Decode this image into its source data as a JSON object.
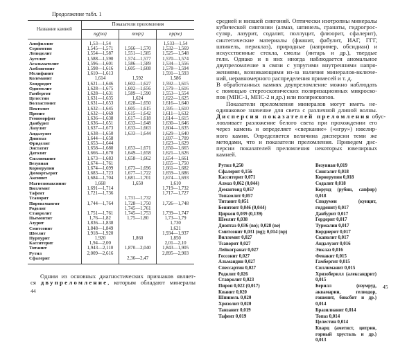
{
  "left_page": {
    "table_caption": "Продолжение табл. 1",
    "table": {
      "name_header": "Название камней",
      "group_header": "Показатели преломления",
      "columns": [
        "ng(no)",
        "nm(n)",
        "np(ne)"
      ],
      "rows": [
        [
          "Апофиллит",
          "1,53—1,54",
          "",
          "1,533—1,54"
        ],
        [
          "Серпентин",
          "1,545—1,571",
          "1,566—1,570",
          "1,532—1,569"
        ],
        [
          "Лепидолит",
          "1,554—1,587",
          "1,551—1,585",
          "1,525—1,548"
        ],
        [
          "Аугелит",
          "1,588—1,590",
          "1,574—1,577",
          "1,570—1,574"
        ],
        [
          "Агальматолит",
          "1,596—1,601",
          "1,586—1,589",
          "1,534—1,556"
        ],
        [
          "Амблигонит",
          "1,598—1,616",
          "1,605—1,608",
          "1,578—1,594"
        ],
        [
          "Мелифанит",
          "1,610—1,613",
          "",
          "1,591—1,593"
        ],
        [
          "Колеманит",
          "1,614",
          "1,592",
          "1,586"
        ],
        [
          "Хондродит",
          "1,621—1,646",
          "1,602—1,627",
          "1,592—1,615"
        ],
        [
          "Одонтолит",
          "1,628—1,675",
          "1,602—1,656",
          "1,579—1,616"
        ],
        [
          "Гамбергит",
          "1,628—1,631",
          "1,589—1,590",
          "1,553—1,554"
        ],
        [
          "Целестин",
          "1,631—1,635",
          "1,624",
          "1,622—1,625"
        ],
        [
          "Волластонит",
          "1,631—1,653",
          "1,628—1,650",
          "1,616—1,640"
        ],
        [
          "Пектолит",
          "1,632—1,645",
          "1,605—1,615",
          "1,595—1,610"
        ],
        [
          "Пренит",
          "1,632—1,669",
          "1,615—1,642",
          "1,611—1,632"
        ],
        [
          "Гемиморфит",
          "1,636—1,638",
          "1,617—1,618",
          "1,614—1,615"
        ],
        [
          "Данбурит",
          "1,636—1,651",
          "1,633—1,648",
          "1,630—1,646"
        ],
        [
          "Лазулит",
          "1,637—1,673",
          "1,633—1,663",
          "1,604—1,635"
        ],
        [
          "Андалузит",
          "1,638—1,650",
          "1,633—1,644",
          "1,629—1,640"
        ],
        [
          "Диоптаз",
          "1,644—1,658",
          "",
          "1,697—1,709"
        ],
        [
          "Фриделит",
          "1,653—1,644",
          "",
          "1,623—1,629"
        ],
        [
          "Энстатит",
          "1,658—1,680",
          "1,653—1,671",
          "1,650—1,665"
        ],
        [
          "Датолит",
          "1,666—1,670",
          "1,649—1,658",
          "1,621—1,626"
        ],
        [
          "Силлиманит",
          "1,673—1,683",
          "1,658—1,662",
          "1,654—1,661"
        ],
        [
          "Везувиан",
          "1,674—1,761",
          "",
          "1,655—1,750"
        ],
        [
          "Корнерупин",
          "1,674—1,699",
          "1,673—1,696",
          "1,661—1,682"
        ],
        [
          "Дюмортьерит",
          "1,683—1,723",
          "1,677—1,722",
          "1,659—1,686"
        ],
        [
          "Аксинит",
          "1,684—1,704",
          "1,681—1,701",
          "1,674—1,693"
        ],
        [
          "Магнезиоаксинит",
          "1,668",
          "1,650",
          "1,610"
        ],
        [
          "Виллемит",
          "1,691—1,714",
          "",
          "1,719—1,732"
        ],
        [
          "Тафеит",
          "1,721—1,736",
          "",
          "1,717—1,727"
        ],
        [
          "Тсаворит",
          "",
          "1,731—1,732",
          ""
        ],
        [
          "Пироксмангит",
          "1,744—1,764",
          "1,728—1,750",
          "1,726—1,748"
        ],
        [
          "Родолит",
          "",
          "1,745—1,761",
          ""
        ],
        [
          "Ставролит",
          "1,751—1,761",
          "1,745—1,753",
          "1,739—1,747"
        ],
        [
          "Пьемонтит",
          "1,76—1,82",
          "1,75—1,80",
          "1,73—1,79"
        ],
        [
          "Азурит",
          "1,836—1,838",
          "",
          "1,730"
        ],
        [
          "Смитсонит",
          "1,848—1,849",
          "",
          "1,621"
        ],
        [
          "Шеелит",
          "1,918—1,920",
          "",
          "1,934—1,937"
        ],
        [
          "Пурпурит",
          "1,920",
          "1,860",
          "1,850"
        ],
        [
          "Касситерит",
          "1,94—2,00",
          "",
          "2,01—2,10"
        ],
        [
          "Титанит",
          "1,943—2,110",
          "1,870—2,040",
          "1,843—1,905"
        ],
        [
          "Рутил",
          "2,009—2,616",
          "",
          "2,895—2,903"
        ],
        [
          "Сфалерит",
          "",
          "2,36—2,47",
          ""
        ]
      ]
    },
    "paragraph": [
      [
        {
          "t": "Одним из основных диагностических признаков являет-"
        }
      ],
      [
        {
          "t": "ся "
        },
        {
          "t": "двупреломление",
          "sp": true
        },
        {
          "t": ", которым обладают минералы"
        }
      ]
    ],
    "page_number": "44"
  },
  "right_page": {
    "paragraph": [
      [
        {
          "t": "средней и низшей сингоний. Оптически изотропны минералы"
        }
      ],
      [
        {
          "t": "кубической сингонии (алмаз, шпинель, гранаты, гидрогрос-"
        }
      ],
      [
        {
          "t": "суляр, лазурит, содалит, поллуцит, флюорит, сфалерит),"
        }
      ],
      [
        {
          "t": "синтетические материалы (фианит, фабулит, ИАГ, ГГГ,"
        }
      ],
      [
        {
          "t": "шпинель, периклаз), природные (например, обсидиан) и"
        }
      ],
      [
        {
          "t": "искусственные стекла, смолы (янтарь и др.), твердые"
        }
      ],
      [
        {
          "t": "гели. Однако и в них иногда наблюдается аномальное"
        }
      ],
      [
        {
          "t": "двупреломление в связи с упругими внутренними напря-"
        }
      ],
      [
        {
          "t": "жениями, возникающими из-за наличия минералов-включе-"
        }
      ],
      [
        {
          "t": "ний, неравномерного распределения примесей и т. д."
        }
      ],
      [
        {
          "t": "В обработанных камнях двупреломление можно наблюдать"
        }
      ],
      [
        {
          "t": "с помощью стереоскопических поляризационных микроско-"
        }
      ],
      [
        {
          "t": "пов (МПС-1, МПС-2 и др.) или полярископов."
        }
      ],
      [
        {
          "t": "Показатели преломления минералов могут иметь не-"
        }
      ],
      [
        {
          "t": "одинаковое значение для света с различной длиной волны."
        }
      ],
      [
        {
          "t": "Дисперсия показателей преломления",
          "sp": true
        },
        {
          "t": " обус-"
        }
      ],
      [
        {
          "t": "ловливает разложение белого света при прохождении его"
        }
      ],
      [
        {
          "t": "через камень и определяет «сверкание» («игру») ювелир-"
        }
      ],
      [
        {
          "t": "ного камня. Определяется величина дисперсии теми же"
        }
      ],
      [
        {
          "t": "методами, что и показатели преломления. Приведем дис-"
        }
      ],
      [
        {
          "t": "персии показателей преломления некоторых ювелирных"
        }
      ],
      [
        {
          "t": "камней."
        }
      ]
    ],
    "dispersion_list_left": [
      "Рутил 0,250",
      "Сфалерит 0,156",
      "Касситерит 0,071",
      "Алмаз 0,062 (0,044)",
      "Демантоид 0,057",
      "Топазолит 0,057",
      "Титанит 0,051",
      "Бенитоит 0,046 (0,044)",
      "Циркон 0,039 (0,139)",
      "Шеелит 0,038",
      "Диоптаз 0,036 (no); 0,028 (ne)",
      "Смитсонит 0,031 (ng); 0,014 (np)",
      "Виллемит 0,027",
      "Тсаворит 0,027",
      "Лейкогранат 0,027",
      "Гессонит 0,027",
      "Альмандин 0,027",
      "Спессартин 0,027",
      "Родолит 0,026",
      "Ставролит 0,023",
      "Пироп 0,022 (0,017)",
      "Кианит 0,020",
      "Шпинель 0,020",
      "Хризолит 0,020",
      "Танзанит 0,019",
      "Тафеит 0,019"
    ],
    "dispersion_list_right": [
      "Везувиан 0,019",
      "Сингалит 0,018",
      "Корнерупин 0,018",
      "Содалит 0,018",
      "Корунд (рубин, сапфир) 0,018",
      "Сподумен (кунцит, гидденит) 0,017",
      "Данбурит 0,017",
      "Гердерит 0,017",
      "Турмалин 0,017",
      "Кордиерит 0,017",
      "Скаполит 0,017",
      "Андалузит 0,016",
      "Эвклаз 0,016",
      "Фенакит 0,015",
      "Гамбергит 0,015",
      "Силлиманит 0,015",
      "Хризоберилл (александрит) 0,015",
      "Берилл (изумруд, аквамарин, гелиодор, гошенит, биксбит и др.) 0,014",
      "Бразилианит 0,014",
      "Топаз 0,014",
      "Целестин 0,014",
      "Кварц (аметист, цитрин, горный хрусталь и др.) 0,013"
    ],
    "page_number": "45"
  }
}
